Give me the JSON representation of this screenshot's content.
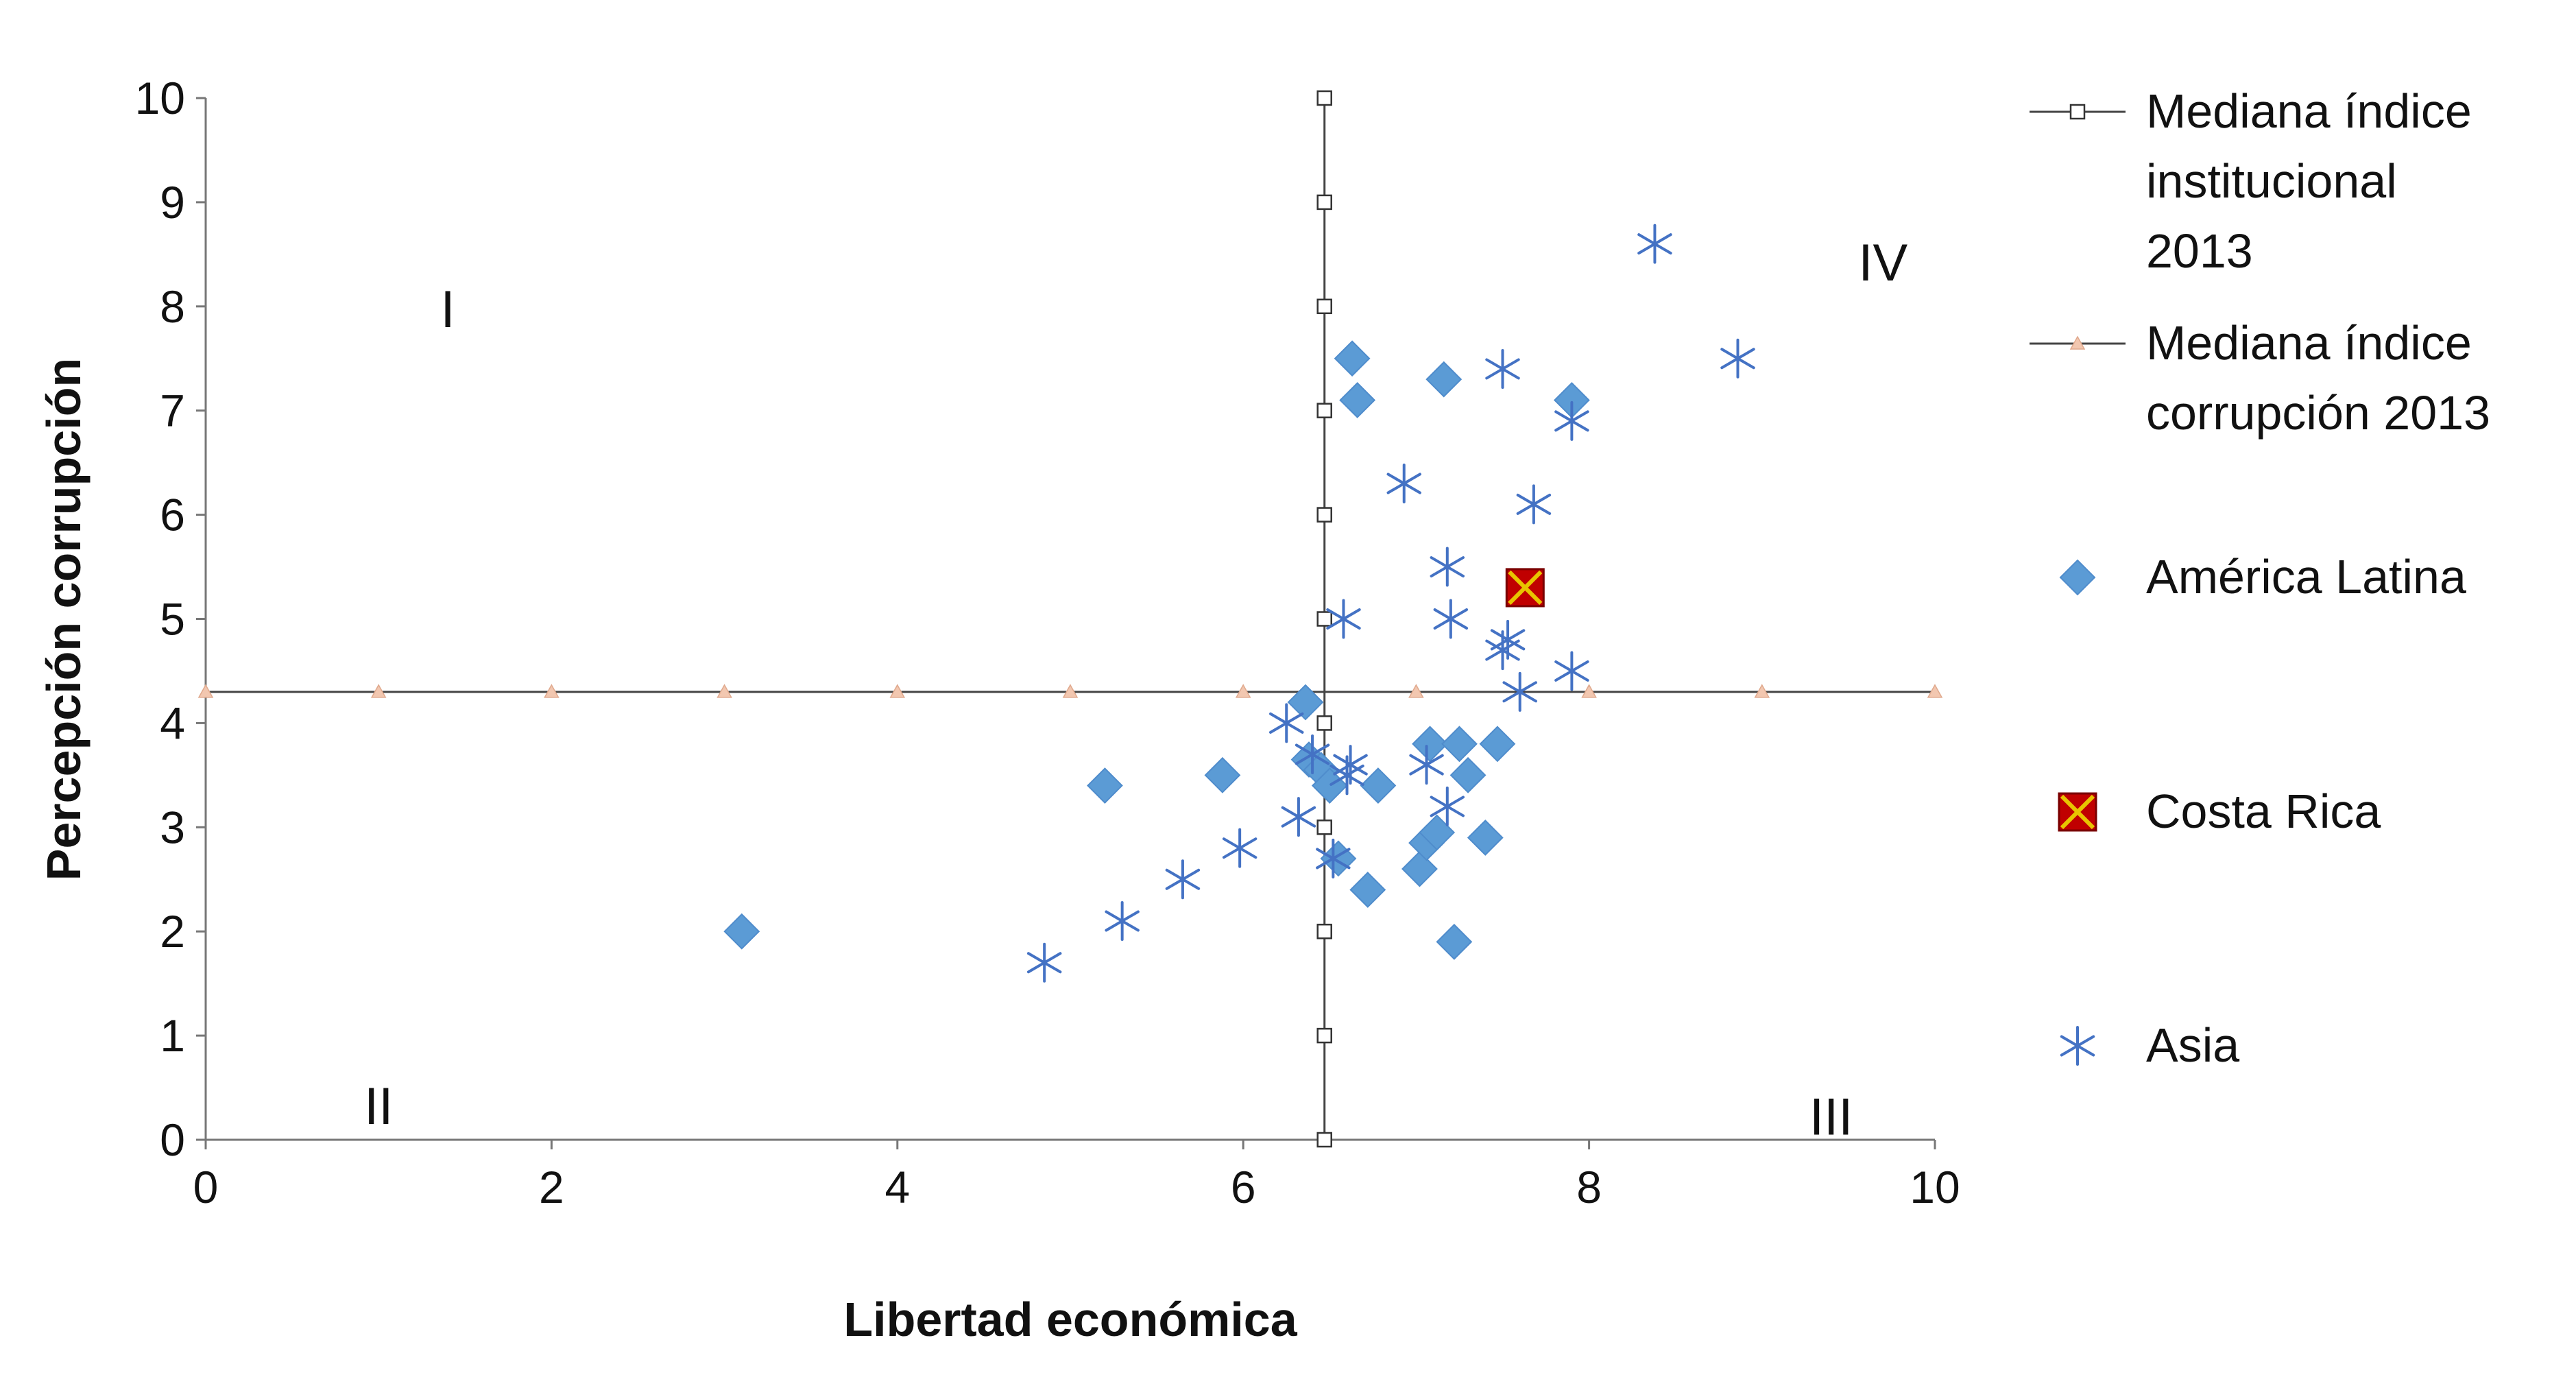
{
  "chart_data": {
    "type": "scatter",
    "title": "",
    "xlabel": "Libertad económica",
    "ylabel": "Percepción corrupción",
    "xlim": [
      0,
      10
    ],
    "ylim": [
      0,
      10
    ],
    "xticks": [
      0,
      2,
      4,
      6,
      8,
      10
    ],
    "yticks": [
      0,
      1,
      2,
      3,
      4,
      5,
      6,
      7,
      8,
      9,
      10
    ],
    "grid": false,
    "legend_position": "right",
    "quadrant_labels": [
      {
        "text": "I",
        "x": 1.4,
        "y": 7.8
      },
      {
        "text": "II",
        "x": 1.0,
        "y": 0.15
      },
      {
        "text": "III",
        "x": 9.4,
        "y": 0.05
      },
      {
        "text": "IV",
        "x": 9.7,
        "y": 8.25
      }
    ],
    "series": [
      {
        "name": "Mediana índice institucional 2013",
        "line_name": "Mediana índice institucional 2013",
        "marker": "square-open",
        "color": "#333333",
        "points": [
          [
            6.47,
            0
          ],
          [
            6.47,
            1
          ],
          [
            6.47,
            2
          ],
          [
            6.47,
            3
          ],
          [
            6.47,
            4
          ],
          [
            6.47,
            5
          ],
          [
            6.47,
            6
          ],
          [
            6.47,
            7
          ],
          [
            6.47,
            8
          ],
          [
            6.47,
            9
          ],
          [
            6.47,
            10
          ]
        ]
      },
      {
        "name": "Mediana índice corrupción 2013",
        "marker": "triangle",
        "color": "#f2c7b0",
        "points": [
          [
            0,
            4.3
          ],
          [
            1,
            4.3
          ],
          [
            2,
            4.3
          ],
          [
            3,
            4.3
          ],
          [
            4,
            4.3
          ],
          [
            5,
            4.3
          ],
          [
            6,
            4.3
          ],
          [
            7,
            4.3
          ],
          [
            8,
            4.3
          ],
          [
            9,
            4.3
          ],
          [
            10,
            4.3
          ]
        ]
      },
      {
        "name": "América Latina",
        "marker": "diamond",
        "color": "#5b9bd5",
        "points": [
          [
            3.1,
            2.0
          ],
          [
            5.2,
            3.4
          ],
          [
            5.88,
            3.5
          ],
          [
            6.36,
            4.2
          ],
          [
            6.38,
            3.65
          ],
          [
            6.45,
            3.55
          ],
          [
            6.5,
            3.4
          ],
          [
            6.55,
            2.7
          ],
          [
            6.72,
            2.4
          ],
          [
            6.78,
            3.4
          ],
          [
            7.02,
            2.6
          ],
          [
            7.06,
            2.85
          ],
          [
            7.12,
            2.95
          ],
          [
            7.08,
            3.8
          ],
          [
            7.25,
            3.8
          ],
          [
            7.3,
            3.5
          ],
          [
            7.4,
            2.9
          ],
          [
            7.47,
            3.8
          ],
          [
            7.22,
            1.9
          ],
          [
            6.63,
            7.5
          ],
          [
            6.66,
            7.1
          ],
          [
            7.16,
            7.3
          ],
          [
            7.9,
            7.1
          ]
        ]
      },
      {
        "name": "Costa Rica",
        "marker": "square-x",
        "color": "#c00000",
        "points": [
          [
            7.63,
            5.3
          ]
        ]
      },
      {
        "name": "Asia",
        "marker": "asterisk",
        "color": "#4472c4",
        "points": [
          [
            4.85,
            1.7
          ],
          [
            5.3,
            2.1
          ],
          [
            5.65,
            2.5
          ],
          [
            5.98,
            2.8
          ],
          [
            6.25,
            4.0
          ],
          [
            6.32,
            3.1
          ],
          [
            6.4,
            3.7
          ],
          [
            6.52,
            2.7
          ],
          [
            6.6,
            3.5
          ],
          [
            6.62,
            3.6
          ],
          [
            6.58,
            5.0
          ],
          [
            6.93,
            6.3
          ],
          [
            7.06,
            3.6
          ],
          [
            7.18,
            3.2
          ],
          [
            7.2,
            5.0
          ],
          [
            7.18,
            5.5
          ],
          [
            7.5,
            4.7
          ],
          [
            7.53,
            4.8
          ],
          [
            7.6,
            4.3
          ],
          [
            7.9,
            4.5
          ],
          [
            7.9,
            6.9
          ],
          [
            7.68,
            6.1
          ],
          [
            7.5,
            7.4
          ],
          [
            8.38,
            8.6
          ],
          [
            8.86,
            7.5
          ]
        ]
      }
    ],
    "legend": [
      {
        "series": "Mediana índice institucional 2013",
        "lines": [
          "Mediana índice",
          "institucional",
          "2013"
        ]
      },
      {
        "series": "Mediana índice corrupción 2013",
        "lines": [
          "Mediana índice",
          "corrupción 2013"
        ]
      },
      {
        "series": "América Latina",
        "lines": [
          "América Latina"
        ]
      },
      {
        "series": "Costa Rica",
        "lines": [
          "Costa Rica"
        ]
      },
      {
        "series": "Asia",
        "lines": [
          "Asia"
        ]
      }
    ]
  }
}
